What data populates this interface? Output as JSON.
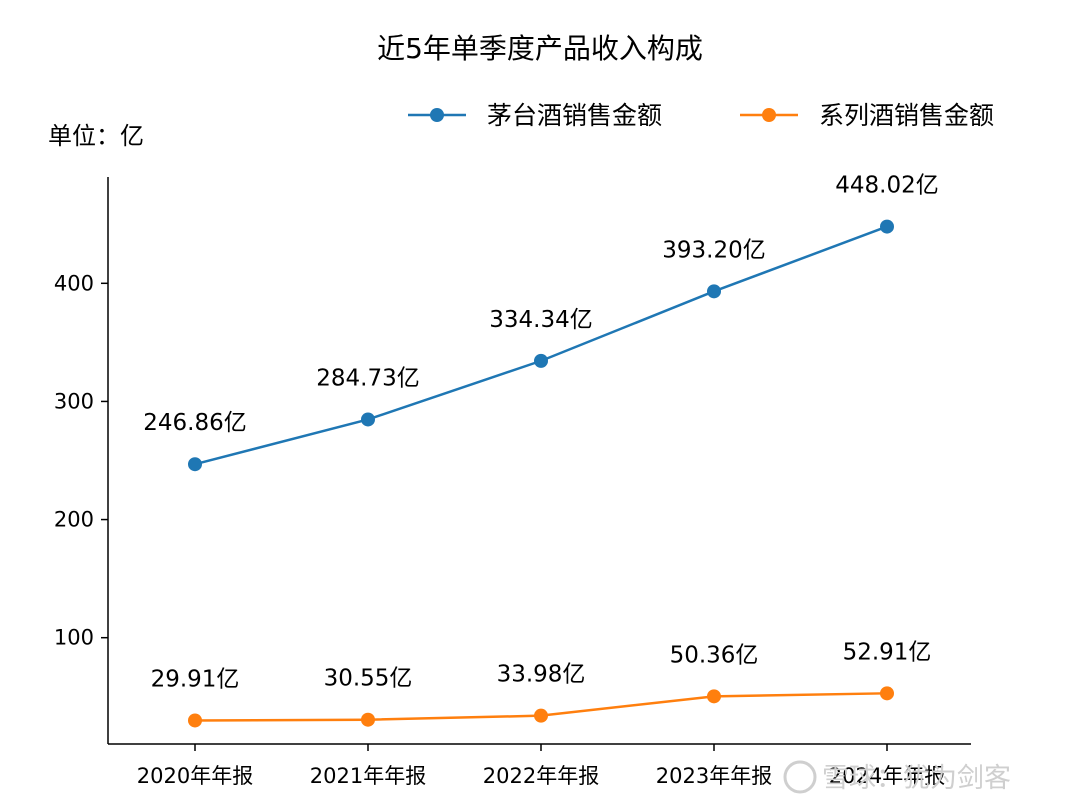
{
  "chart_data": {
    "type": "line",
    "title": "近5年单季度产品收入构成",
    "unit_label": "单位：亿",
    "categories": [
      "2020年年报",
      "2021年年报",
      "2022年年报",
      "2023年年报",
      "2024年年报"
    ],
    "series": [
      {
        "name": "茅台酒销售金额",
        "color": "#1f77b4",
        "values": [
          246.86,
          284.73,
          334.34,
          393.2,
          448.02
        ],
        "labels": [
          "246.86亿",
          "284.73亿",
          "334.34亿",
          "393.20亿",
          "448.02亿"
        ]
      },
      {
        "name": "系列酒销售金额",
        "color": "#ff7f0e",
        "values": [
          29.91,
          30.55,
          33.98,
          50.36,
          52.91
        ],
        "labels": [
          "29.91亿",
          "30.55亿",
          "33.98亿",
          "50.36亿",
          "52.91亿"
        ]
      }
    ],
    "y_ticks": [
      100,
      200,
      300,
      400
    ],
    "ylim": [
      10,
      490
    ],
    "grid": false,
    "legend_position": "top-right"
  },
  "watermark": "雪球：犹为剑客"
}
